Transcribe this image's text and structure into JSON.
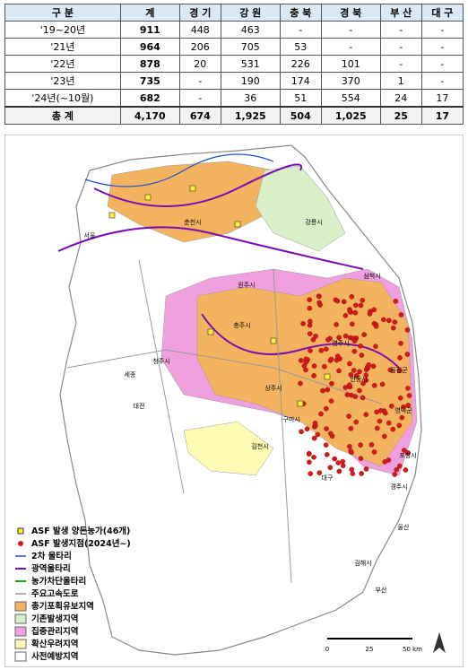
{
  "table": {
    "header": [
      "구 분",
      "계",
      "경 기",
      "강 원",
      "충 북",
      "경 북",
      "부 산",
      "대 구"
    ],
    "rows": [
      [
        "'19~20년",
        "911",
        "448",
        "463",
        "-",
        "-",
        "-",
        "-"
      ],
      [
        "'21년",
        "964",
        "206",
        "705",
        "53",
        "-",
        "-",
        "-"
      ],
      [
        "'22년",
        "878",
        "20",
        "531",
        "226",
        "101",
        "-",
        "-"
      ],
      [
        "'23년",
        "735",
        "-",
        "190",
        "174",
        "370",
        "1",
        "-"
      ],
      [
        "'24년(~10월)",
        "682",
        "-",
        "36",
        "51",
        "554",
        "24",
        "17"
      ]
    ],
    "total": [
      "총 계",
      "4,170",
      "674",
      "1,925",
      "504",
      "1,025",
      "25",
      "17"
    ]
  },
  "map": {
    "labels": [
      "서울",
      "춘천시",
      "강릉시",
      "원주시",
      "삼척시",
      "충주시",
      "영주시",
      "안동시",
      "울진군",
      "영덕군",
      "청주시",
      "세종",
      "상주시",
      "대전",
      "구미시",
      "포항시",
      "김천시",
      "대구",
      "경주시",
      "울산",
      "김해시",
      "부산"
    ],
    "legend": [
      "ASF 발생 양돈농가(46개)",
      "ASF 발생지점(2024년~)",
      "2차 울타리",
      "광역울타리",
      "농가차단울타리",
      "주요고속도로",
      "총기포획유보지역",
      "기존발생지역",
      "집중관리지역",
      "확산우려지역",
      "사전예방지역"
    ],
    "scale": [
      "0",
      "25",
      "50 km"
    ]
  }
}
